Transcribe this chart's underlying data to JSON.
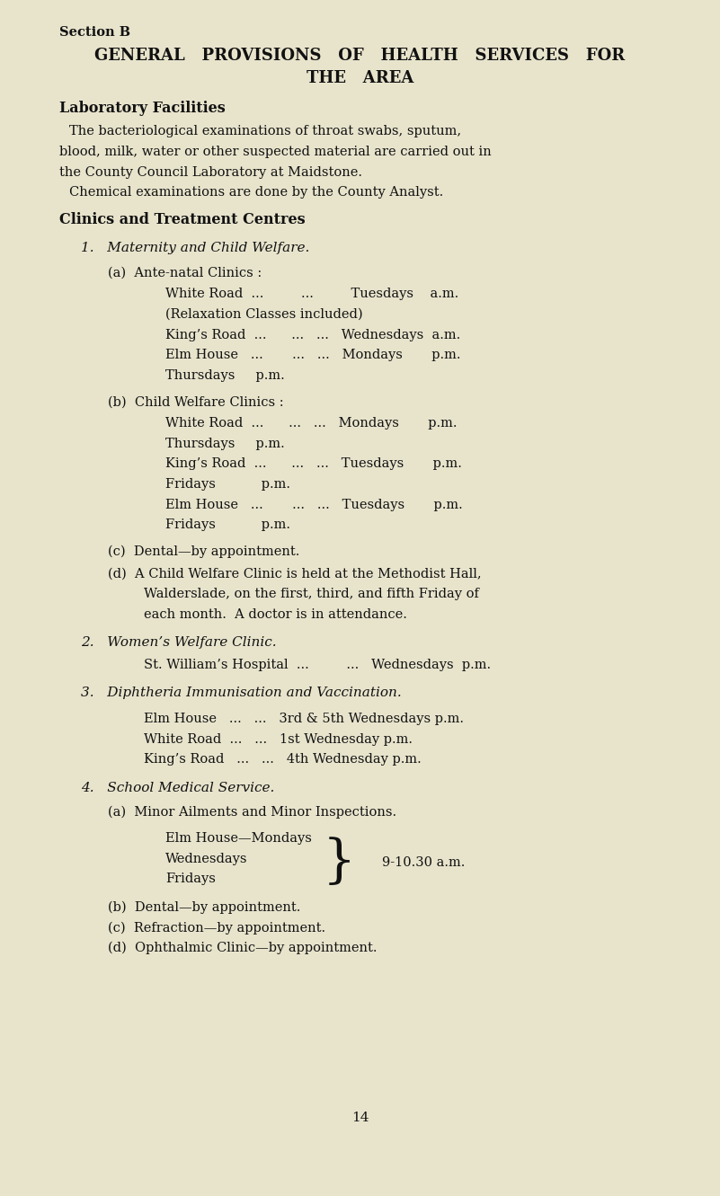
{
  "bg_color": "#e8e4cc",
  "text_color": "#111111",
  "page_width": 8.01,
  "page_height": 13.31,
  "entries": [
    {
      "xf": 0.082,
      "yf": 0.97,
      "text": "Section B",
      "fs": 10.5,
      "fw": "bold",
      "fst": "normal",
      "ha": "left"
    },
    {
      "xf": 0.5,
      "yf": 0.95,
      "text": "GENERAL   PROVISIONS   OF   HEALTH   SERVICES   FOR",
      "fs": 13.0,
      "fw": "bold",
      "fst": "normal",
      "ha": "center"
    },
    {
      "xf": 0.5,
      "yf": 0.931,
      "text": "THE   AREA",
      "fs": 13.0,
      "fw": "bold",
      "fst": "normal",
      "ha": "center"
    },
    {
      "xf": 0.082,
      "yf": 0.906,
      "text": "Laboratory Facilities",
      "fs": 11.5,
      "fw": "bold",
      "fst": "normal",
      "ha": "left"
    },
    {
      "xf": 0.096,
      "yf": 0.887,
      "text": "The bacteriological examinations of throat swabs, sputum,",
      "fs": 10.5,
      "fw": "normal",
      "fst": "normal",
      "ha": "left"
    },
    {
      "xf": 0.082,
      "yf": 0.87,
      "text": "blood, milk, water or other suspected material are carried out in",
      "fs": 10.5,
      "fw": "normal",
      "fst": "normal",
      "ha": "left"
    },
    {
      "xf": 0.082,
      "yf": 0.853,
      "text": "the County Council Laboratory at Maidstone.",
      "fs": 10.5,
      "fw": "normal",
      "fst": "normal",
      "ha": "left"
    },
    {
      "xf": 0.096,
      "yf": 0.836,
      "text": "Chemical examinations are done by the County Analyst.",
      "fs": 10.5,
      "fw": "normal",
      "fst": "normal",
      "ha": "left"
    },
    {
      "xf": 0.082,
      "yf": 0.813,
      "text": "Clinics and Treatment Centres",
      "fs": 11.5,
      "fw": "bold",
      "fst": "normal",
      "ha": "left"
    },
    {
      "xf": 0.112,
      "yf": 0.79,
      "text": "1.   Maternity and Child Welfare.",
      "fs": 11.0,
      "fw": "normal",
      "fst": "italic",
      "ha": "left"
    },
    {
      "xf": 0.15,
      "yf": 0.769,
      "text": "(a)  Ante-natal Clinics :",
      "fs": 10.5,
      "fw": "normal",
      "fst": "normal",
      "ha": "left"
    },
    {
      "xf": 0.23,
      "yf": 0.751,
      "text": "White Road  ...         ...         Tuesdays    a.m.",
      "fs": 10.5,
      "fw": "normal",
      "fst": "normal",
      "ha": "left"
    },
    {
      "xf": 0.23,
      "yf": 0.734,
      "text": "(Relaxation Classes included)",
      "fs": 10.5,
      "fw": "normal",
      "fst": "normal",
      "ha": "left"
    },
    {
      "xf": 0.23,
      "yf": 0.717,
      "text": "King’s Road  ...      ...   ...   Wednesdays  a.m.",
      "fs": 10.5,
      "fw": "normal",
      "fst": "normal",
      "ha": "left"
    },
    {
      "xf": 0.23,
      "yf": 0.7,
      "text": "Elm House   ...       ...   ...   Mondays       p.m.",
      "fs": 10.5,
      "fw": "normal",
      "fst": "normal",
      "ha": "left"
    },
    {
      "xf": 0.23,
      "yf": 0.683,
      "text": "Thursdays     p.m.",
      "fs": 10.5,
      "fw": "normal",
      "fst": "normal",
      "ha": "left"
    },
    {
      "xf": 0.15,
      "yf": 0.661,
      "text": "(b)  Child Welfare Clinics :",
      "fs": 10.5,
      "fw": "normal",
      "fst": "normal",
      "ha": "left"
    },
    {
      "xf": 0.23,
      "yf": 0.643,
      "text": "White Road  ...      ...   ...   Mondays       p.m.",
      "fs": 10.5,
      "fw": "normal",
      "fst": "normal",
      "ha": "left"
    },
    {
      "xf": 0.23,
      "yf": 0.626,
      "text": "Thursdays     p.m.",
      "fs": 10.5,
      "fw": "normal",
      "fst": "normal",
      "ha": "left"
    },
    {
      "xf": 0.23,
      "yf": 0.609,
      "text": "King’s Road  ...      ...   ...   Tuesdays       p.m.",
      "fs": 10.5,
      "fw": "normal",
      "fst": "normal",
      "ha": "left"
    },
    {
      "xf": 0.23,
      "yf": 0.592,
      "text": "Fridays           p.m.",
      "fs": 10.5,
      "fw": "normal",
      "fst": "normal",
      "ha": "left"
    },
    {
      "xf": 0.23,
      "yf": 0.575,
      "text": "Elm House   ...       ...   ...   Tuesdays       p.m.",
      "fs": 10.5,
      "fw": "normal",
      "fst": "normal",
      "ha": "left"
    },
    {
      "xf": 0.23,
      "yf": 0.558,
      "text": "Fridays           p.m.",
      "fs": 10.5,
      "fw": "normal",
      "fst": "normal",
      "ha": "left"
    },
    {
      "xf": 0.15,
      "yf": 0.536,
      "text": "(c)  Dental—by appointment.",
      "fs": 10.5,
      "fw": "normal",
      "fst": "normal",
      "ha": "left"
    },
    {
      "xf": 0.15,
      "yf": 0.517,
      "text": "(d)  A Child Welfare Clinic is held at the Methodist Hall,",
      "fs": 10.5,
      "fw": "normal",
      "fst": "normal",
      "ha": "left"
    },
    {
      "xf": 0.2,
      "yf": 0.5,
      "text": "Walderslade, on the first, third, and fifth Friday of",
      "fs": 10.5,
      "fw": "normal",
      "fst": "normal",
      "ha": "left"
    },
    {
      "xf": 0.2,
      "yf": 0.483,
      "text": "each month.  A doctor is in attendance.",
      "fs": 10.5,
      "fw": "normal",
      "fst": "normal",
      "ha": "left"
    },
    {
      "xf": 0.112,
      "yf": 0.46,
      "text": "2.   Women’s Welfare Clinic.",
      "fs": 11.0,
      "fw": "normal",
      "fst": "italic",
      "ha": "left"
    },
    {
      "xf": 0.2,
      "yf": 0.441,
      "text": "St. William’s Hospital  ...         ...   Wednesdays  p.m.",
      "fs": 10.5,
      "fw": "normal",
      "fst": "normal",
      "ha": "left"
    },
    {
      "xf": 0.112,
      "yf": 0.418,
      "text": "3.   Diphtheria Immunisation and Vaccination.",
      "fs": 11.0,
      "fw": "normal",
      "fst": "italic",
      "ha": "left"
    },
    {
      "xf": 0.2,
      "yf": 0.396,
      "text": "Elm House   ...   ...   3rd & 5th Wednesdays p.m.",
      "fs": 10.5,
      "fw": "normal",
      "fst": "normal",
      "ha": "left"
    },
    {
      "xf": 0.2,
      "yf": 0.379,
      "text": "White Road  ...   ...   1st Wednesday p.m.",
      "fs": 10.5,
      "fw": "normal",
      "fst": "normal",
      "ha": "left"
    },
    {
      "xf": 0.2,
      "yf": 0.362,
      "text": "King’s Road   ...   ...   4th Wednesday p.m.",
      "fs": 10.5,
      "fw": "normal",
      "fst": "normal",
      "ha": "left"
    },
    {
      "xf": 0.112,
      "yf": 0.338,
      "text": "4.   School Medical Service.",
      "fs": 11.0,
      "fw": "normal",
      "fst": "italic",
      "ha": "left"
    },
    {
      "xf": 0.15,
      "yf": 0.318,
      "text": "(a)  Minor Ailments and Minor Inspections.",
      "fs": 10.5,
      "fw": "normal",
      "fst": "normal",
      "ha": "left"
    },
    {
      "xf": 0.23,
      "yf": 0.296,
      "text": "Elm House—Mondays",
      "fs": 10.5,
      "fw": "normal",
      "fst": "normal",
      "ha": "left"
    },
    {
      "xf": 0.23,
      "yf": 0.279,
      "text": "Wednesdays",
      "fs": 10.5,
      "fw": "normal",
      "fst": "normal",
      "ha": "left"
    },
    {
      "xf": 0.23,
      "yf": 0.262,
      "text": "Fridays",
      "fs": 10.5,
      "fw": "normal",
      "fst": "normal",
      "ha": "left"
    },
    {
      "xf": 0.15,
      "yf": 0.238,
      "text": "(b)  Dental—by appointment.",
      "fs": 10.5,
      "fw": "normal",
      "fst": "normal",
      "ha": "left"
    },
    {
      "xf": 0.15,
      "yf": 0.221,
      "text": "(c)  Refraction—by appointment.",
      "fs": 10.5,
      "fw": "normal",
      "fst": "normal",
      "ha": "left"
    },
    {
      "xf": 0.15,
      "yf": 0.204,
      "text": "(d)  Ophthalmic Clinic—by appointment.",
      "fs": 10.5,
      "fw": "normal",
      "fst": "normal",
      "ha": "left"
    },
    {
      "xf": 0.5,
      "yf": 0.062,
      "text": "14",
      "fs": 11.0,
      "fw": "normal",
      "fst": "normal",
      "ha": "center"
    }
  ],
  "brace_xf": 0.448,
  "brace_yf": 0.279,
  "brace_fs": 42,
  "time_xf": 0.53,
  "time_yf": 0.279,
  "time_text": "9-10.30 a.m.",
  "time_fs": 10.5
}
